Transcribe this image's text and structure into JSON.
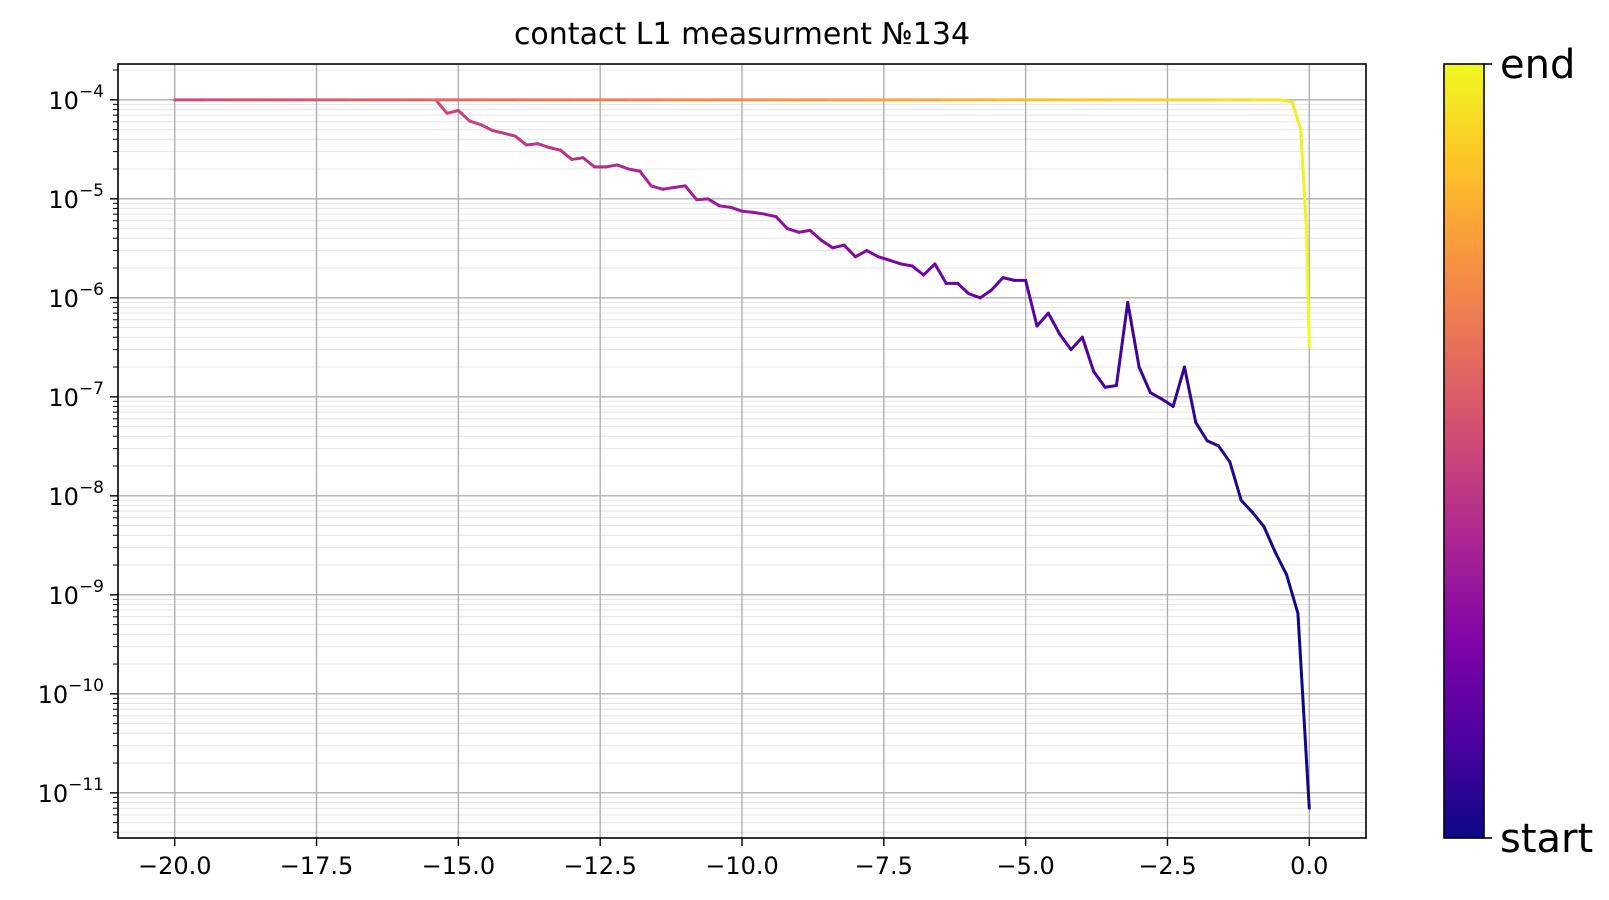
{
  "chart_data": {
    "type": "line",
    "title": "contact L1 measurment №134",
    "xlabel": "",
    "ylabel": "",
    "xlim": [
      -21.0,
      1.0
    ],
    "ylim": [
      3.5e-12,
      0.00023
    ],
    "yscale": "log",
    "grid": true,
    "x_ticks": [
      -20.0,
      -17.5,
      -15.0,
      -12.5,
      -10.0,
      -7.5,
      -5.0,
      -2.5,
      0.0
    ],
    "x_tick_labels": [
      "−20.0",
      "−17.5",
      "−15.0",
      "−12.5",
      "−10.0",
      "−7.5",
      "−5.0",
      "−2.5",
      "0.0"
    ],
    "y_tick_exponents": [
      -4,
      -5,
      -6,
      -7,
      -8,
      -9,
      -10,
      -11
    ],
    "colormap": "plasma",
    "colorbar": {
      "min_label": "start",
      "max_label": "end"
    },
    "series": [
      {
        "color_scale": [
          0.0,
          0.5
        ],
        "x": [
          0.0,
          -0.2,
          -0.4,
          -0.6,
          -0.8,
          -1.0,
          -1.2,
          -1.4,
          -1.6,
          -1.8,
          -2.0,
          -2.2,
          -2.4,
          -2.6,
          -2.8,
          -3.0,
          -3.2,
          -3.4,
          -3.6,
          -3.8,
          -4.0,
          -4.2,
          -4.4,
          -4.6,
          -4.8,
          -5.0,
          -5.2,
          -5.4,
          -5.6,
          -5.8,
          -6.0,
          -6.2,
          -6.4,
          -6.6,
          -6.8,
          -7.0,
          -7.2,
          -7.4,
          -7.6,
          -7.8,
          -8.0,
          -8.2,
          -8.4,
          -8.6,
          -8.8,
          -9.0,
          -9.2,
          -9.4,
          -9.6,
          -9.8,
          -10.0,
          -10.2,
          -10.4,
          -10.6,
          -10.8,
          -11.0,
          -11.2,
          -11.4,
          -11.6,
          -11.8,
          -12.0,
          -12.2,
          -12.4,
          -12.6,
          -12.8,
          -13.0,
          -13.2,
          -13.4,
          -13.6,
          -13.8,
          -14.0,
          -14.2,
          -14.4,
          -14.6,
          -14.8,
          -15.0,
          -15.2,
          -15.4
        ],
        "y": [
          7e-12,
          6.5e-10,
          1.6e-09,
          2.7e-09,
          4.9e-09,
          6.8e-09,
          9e-09,
          2.2e-08,
          3.2e-08,
          3.6e-08,
          5.5e-08,
          2e-07,
          8e-08,
          9.5e-08,
          1.1e-07,
          2e-07,
          9e-07,
          1.3e-07,
          1.25e-07,
          1.8e-07,
          4e-07,
          3e-07,
          4.3e-07,
          7e-07,
          5.2e-07,
          1.5e-06,
          1.5e-06,
          1.6e-06,
          1.2e-06,
          1e-06,
          1.1e-06,
          1.4e-06,
          1.4e-06,
          2.2e-06,
          1.7e-06,
          2.1e-06,
          2.2e-06,
          2.4e-06,
          2.6e-06,
          3e-06,
          2.6e-06,
          3.4e-06,
          3.2e-06,
          3.8e-06,
          4.8e-06,
          4.6e-06,
          5e-06,
          6.6e-06,
          7e-06,
          7.3e-06,
          7.5e-06,
          8.2e-06,
          8.5e-06,
          1e-05,
          9.8e-06,
          1.35e-05,
          1.3e-05,
          1.25e-05,
          1.35e-05,
          1.9e-05,
          2e-05,
          2.2e-05,
          2.1e-05,
          2.1e-05,
          2.6e-05,
          2.5e-05,
          3.1e-05,
          3.3e-05,
          3.6e-05,
          3.5e-05,
          4.3e-05,
          4.6e-05,
          4.9e-05,
          5.6e-05,
          6.1e-05,
          7.8e-05,
          7.3e-05,
          0.0001
        ]
      },
      {
        "color_scale": [
          0.5,
          1.0
        ],
        "x": [
          -20.0,
          -19.5,
          -19.0,
          -18.5,
          -18.0,
          -17.5,
          -17.0,
          -16.5,
          -16.0,
          -15.5,
          -15.0,
          -14.5,
          -14.0,
          -13.5,
          -13.0,
          -12.5,
          -12.0,
          -11.5,
          -11.0,
          -10.5,
          -10.0,
          -9.5,
          -9.0,
          -8.5,
          -8.0,
          -7.5,
          -7.0,
          -6.5,
          -6.0,
          -5.5,
          -5.0,
          -4.5,
          -4.0,
          -3.5,
          -3.0,
          -2.5,
          -2.0,
          -1.5,
          -1.0,
          -0.5,
          -0.3,
          -0.15,
          -0.05,
          0.0
        ],
        "y": [
          0.0001,
          0.0001,
          0.0001,
          0.0001,
          0.0001,
          0.0001,
          0.0001,
          0.0001,
          0.0001,
          0.0001,
          0.0001,
          0.0001,
          0.0001,
          0.0001,
          0.0001,
          0.0001,
          0.0001,
          0.0001,
          0.0001,
          0.0001,
          0.0001,
          0.0001,
          0.0001,
          0.0001,
          0.0001,
          0.0001,
          0.0001,
          0.0001,
          0.0001,
          0.0001,
          0.0001,
          0.0001,
          0.0001,
          0.0001,
          0.0001,
          0.0001,
          0.0001,
          0.0001,
          0.0001,
          0.0001,
          9.5e-05,
          5e-05,
          5e-06,
          3.2e-07
        ]
      }
    ]
  }
}
